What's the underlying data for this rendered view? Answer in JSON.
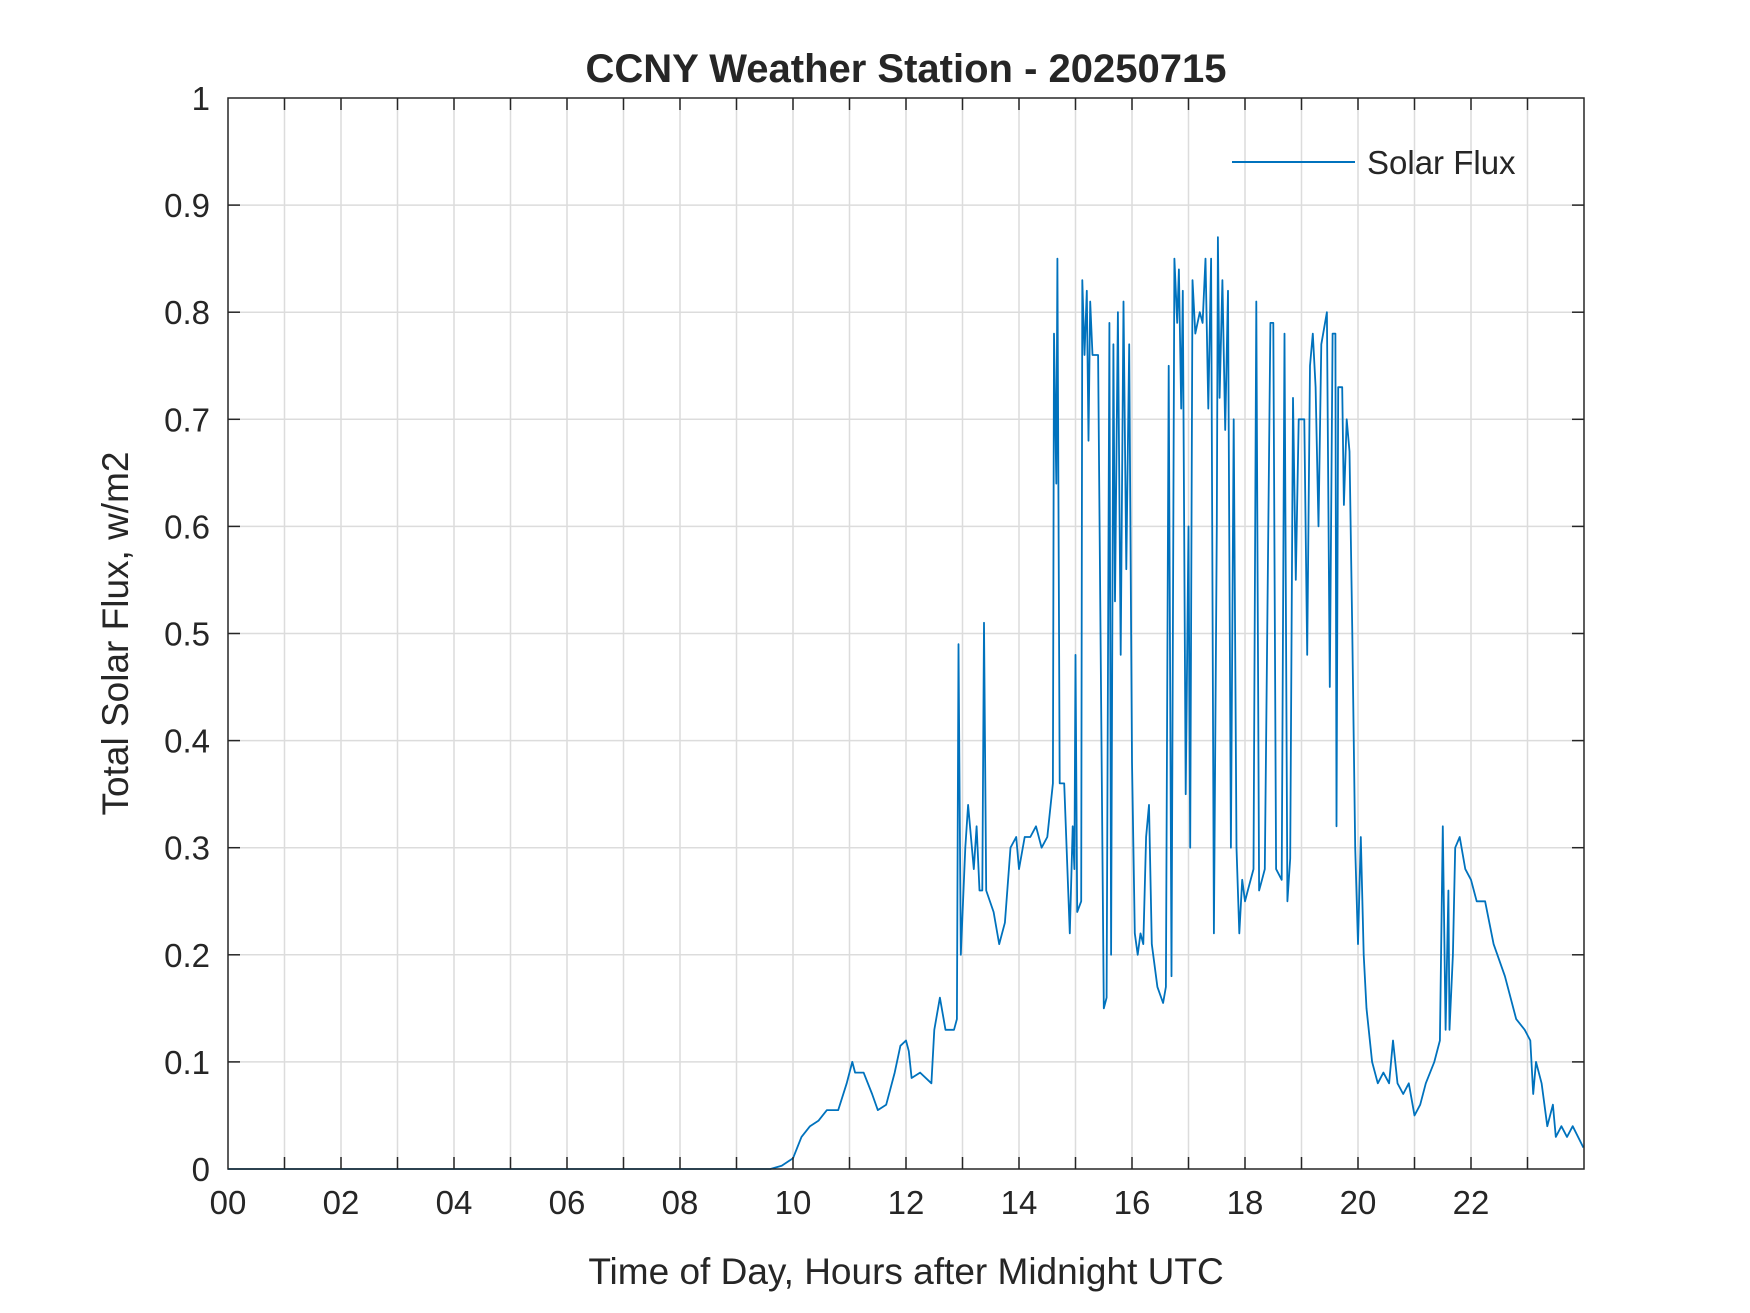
{
  "chart_data": {
    "type": "line",
    "title": "CCNY Weather Station - 20250715",
    "xlabel": "Time of Day, Hours after Midnight UTC",
    "ylabel": "Total Solar Flux, w/m2",
    "xlim": [
      0,
      24
    ],
    "ylim": [
      0,
      1
    ],
    "xticks": [
      0,
      2,
      4,
      6,
      8,
      10,
      12,
      14,
      16,
      18,
      20,
      22
    ],
    "xtick_labels": [
      "00",
      "02",
      "04",
      "06",
      "08",
      "10",
      "12",
      "14",
      "16",
      "18",
      "20",
      "22"
    ],
    "yticks": [
      0,
      0.1,
      0.2,
      0.3,
      0.4,
      0.5,
      0.6,
      0.7,
      0.8,
      0.9,
      1
    ],
    "ytick_labels": [
      "0",
      "0.1",
      "0.2",
      "0.3",
      "0.4",
      "0.5",
      "0.6",
      "0.7",
      "0.8",
      "0.9",
      "1"
    ],
    "grid": true,
    "legend_position": "top-right",
    "series": [
      {
        "name": "Solar Flux",
        "color": "#0072BD",
        "x": [
          0,
          9.6,
          9.8,
          10.0,
          10.15,
          10.3,
          10.45,
          10.6,
          10.8,
          10.95,
          11.05,
          11.1,
          11.25,
          11.4,
          11.5,
          11.65,
          11.8,
          11.9,
          12.0,
          12.05,
          12.1,
          12.25,
          12.45,
          12.5,
          12.6,
          12.7,
          12.85,
          12.9,
          12.93,
          12.97,
          13.05,
          13.1,
          13.2,
          13.25,
          13.3,
          13.35,
          13.38,
          13.42,
          13.55,
          13.65,
          13.75,
          13.85,
          13.95,
          14.0,
          14.1,
          14.2,
          14.3,
          14.4,
          14.5,
          14.6,
          14.62,
          14.66,
          14.68,
          14.72,
          14.8,
          14.9,
          14.95,
          14.98,
          15.0,
          15.03,
          15.1,
          15.12,
          15.16,
          15.2,
          15.23,
          15.26,
          15.3,
          15.4,
          15.5,
          15.55,
          15.6,
          15.63,
          15.67,
          15.7,
          15.75,
          15.8,
          15.85,
          15.9,
          15.95,
          16.0,
          16.05,
          16.1,
          16.15,
          16.2,
          16.25,
          16.3,
          16.35,
          16.45,
          16.55,
          16.6,
          16.65,
          16.7,
          16.75,
          16.8,
          16.83,
          16.87,
          16.9,
          16.95,
          17.0,
          17.03,
          17.07,
          17.12,
          17.2,
          17.25,
          17.3,
          17.35,
          17.4,
          17.45,
          17.5,
          17.52,
          17.55,
          17.6,
          17.65,
          17.7,
          17.75,
          17.8,
          17.85,
          17.9,
          17.95,
          18.0,
          18.05,
          18.15,
          18.2,
          18.25,
          18.3,
          18.35,
          18.45,
          18.5,
          18.55,
          18.65,
          18.7,
          18.75,
          18.8,
          18.85,
          18.9,
          18.95,
          19.05,
          19.1,
          19.15,
          19.2,
          19.25,
          19.3,
          19.35,
          19.45,
          19.5,
          19.55,
          19.6,
          19.62,
          19.65,
          19.72,
          19.75,
          19.8,
          19.85,
          19.9,
          19.95,
          20.0,
          20.05,
          20.1,
          20.15,
          20.25,
          20.35,
          20.45,
          20.55,
          20.62,
          20.7,
          20.8,
          20.9,
          21.0,
          21.1,
          21.2,
          21.35,
          21.45,
          21.5,
          21.55,
          21.6,
          21.62,
          21.68,
          21.72,
          21.8,
          21.9,
          22.0,
          22.1,
          22.25,
          22.4,
          22.6,
          22.8,
          22.95,
          23.05,
          23.1,
          23.15,
          23.25,
          23.35,
          23.45,
          23.5,
          23.6,
          23.7,
          23.8,
          23.99
        ],
        "y": [
          0,
          0,
          0.003,
          0.01,
          0.03,
          0.04,
          0.045,
          0.055,
          0.055,
          0.08,
          0.1,
          0.09,
          0.09,
          0.07,
          0.055,
          0.06,
          0.09,
          0.115,
          0.12,
          0.11,
          0.085,
          0.09,
          0.08,
          0.13,
          0.16,
          0.13,
          0.13,
          0.14,
          0.49,
          0.2,
          0.3,
          0.34,
          0.28,
          0.32,
          0.26,
          0.26,
          0.51,
          0.26,
          0.24,
          0.21,
          0.23,
          0.3,
          0.31,
          0.28,
          0.31,
          0.31,
          0.32,
          0.3,
          0.31,
          0.36,
          0.78,
          0.64,
          0.85,
          0.36,
          0.36,
          0.22,
          0.32,
          0.28,
          0.48,
          0.24,
          0.25,
          0.83,
          0.76,
          0.82,
          0.68,
          0.81,
          0.76,
          0.76,
          0.15,
          0.16,
          0.79,
          0.2,
          0.77,
          0.53,
          0.8,
          0.48,
          0.81,
          0.56,
          0.77,
          0.38,
          0.22,
          0.2,
          0.22,
          0.21,
          0.31,
          0.34,
          0.21,
          0.17,
          0.155,
          0.17,
          0.75,
          0.18,
          0.85,
          0.79,
          0.84,
          0.71,
          0.82,
          0.35,
          0.6,
          0.3,
          0.83,
          0.78,
          0.8,
          0.79,
          0.85,
          0.71,
          0.85,
          0.22,
          0.6,
          0.87,
          0.72,
          0.83,
          0.69,
          0.82,
          0.3,
          0.7,
          0.3,
          0.22,
          0.27,
          0.25,
          0.26,
          0.28,
          0.81,
          0.26,
          0.27,
          0.28,
          0.79,
          0.79,
          0.28,
          0.27,
          0.78,
          0.25,
          0.29,
          0.72,
          0.55,
          0.7,
          0.7,
          0.48,
          0.75,
          0.78,
          0.73,
          0.6,
          0.77,
          0.8,
          0.45,
          0.78,
          0.78,
          0.32,
          0.73,
          0.73,
          0.62,
          0.7,
          0.67,
          0.5,
          0.3,
          0.21,
          0.31,
          0.2,
          0.15,
          0.1,
          0.08,
          0.09,
          0.08,
          0.12,
          0.08,
          0.07,
          0.08,
          0.05,
          0.06,
          0.08,
          0.1,
          0.12,
          0.32,
          0.13,
          0.26,
          0.13,
          0.2,
          0.3,
          0.31,
          0.28,
          0.27,
          0.25,
          0.25,
          0.21,
          0.18,
          0.14,
          0.13,
          0.12,
          0.07,
          0.1,
          0.08,
          0.04,
          0.06,
          0.03,
          0.04,
          0.03,
          0.04,
          0.02
        ]
      }
    ]
  }
}
